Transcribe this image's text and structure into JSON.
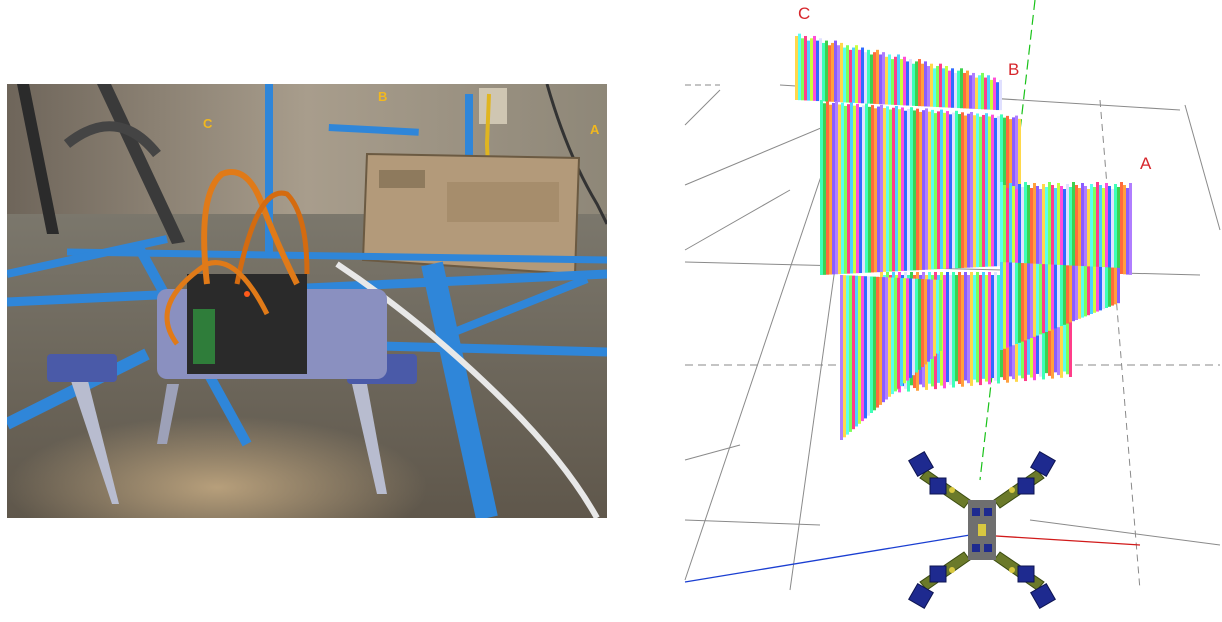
{
  "photo": {
    "labels": {
      "a": "A",
      "b": "B",
      "c": "C"
    },
    "label_color": "#f2b81e",
    "tape_color": "#2f86d9",
    "box_color": "#b39a7a",
    "carpet_color": "#8a8476"
  },
  "render": {
    "labels": {
      "a": "A",
      "b": "B",
      "c": "C"
    },
    "label_color": "#d7262c",
    "axis_colors": {
      "x": "#d11a1a",
      "y": "#19c219",
      "z": "#1a3ed1"
    },
    "robot_colors": {
      "servo": "#1e2a8f",
      "body": "#6f6f6f",
      "leg": "#6b7a2a"
    }
  }
}
